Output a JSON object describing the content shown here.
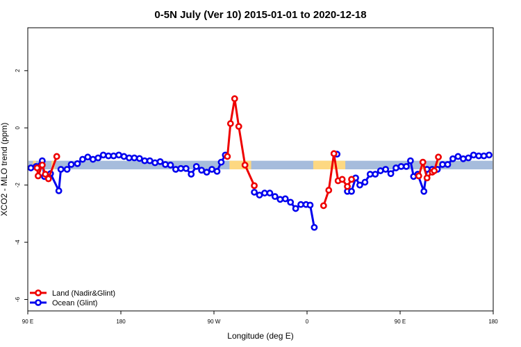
{
  "chart_data": {
    "type": "line",
    "title": "0-5N July (Ver 10)   2015-01-01 to 2020-12-18",
    "xlabel": "Longitude (deg E)",
    "ylabel": "XCO2 - MLO trend (ppm)",
    "x_ticks": [
      {
        "lon": 90,
        "label": "90 E"
      },
      {
        "lon": 180,
        "label": "180"
      },
      {
        "lon": 270,
        "label": "90 W"
      },
      {
        "lon": 360,
        "label": "0"
      },
      {
        "lon": 450,
        "label": "90 E"
      },
      {
        "lon": 540,
        "label": "180"
      }
    ],
    "y_ticks": [
      -6,
      -4,
      -2,
      0,
      2
    ],
    "xlim": [
      90,
      540
    ],
    "ylim": [
      -6.4,
      3.5
    ],
    "legend_position": "bottom-left",
    "grid": false,
    "colors": {
      "land": "#ee0000",
      "ocean": "#0000ee",
      "ocean_band": "#a6bcdc",
      "land_band": "#fdd882"
    },
    "band": {
      "y_range": [
        -1.45,
        -1.15
      ],
      "land_segments": [
        [
          95,
          98
        ],
        [
          113,
          116
        ],
        [
          285,
          306
        ],
        [
          366,
          378
        ],
        [
          368,
          397
        ],
        [
          470,
          475
        ],
        [
          485,
          488
        ]
      ]
    },
    "series": [
      {
        "name": "Land (Nadir&Glint)",
        "key": "land",
        "segments": [
          [
            [
              99,
              -1.4
            ],
            [
              100,
              -1.68
            ],
            [
              104,
              -1.3
            ],
            [
              107,
              -1.62
            ],
            [
              110,
              -1.78
            ],
            [
              118,
              -1.0
            ]
          ],
          [
            [
              283,
              -1.0
            ],
            [
              286,
              0.15
            ],
            [
              290,
              1.02
            ],
            [
              294,
              0.05
            ],
            [
              300,
              -1.3
            ],
            [
              309,
              -2.02
            ]
          ],
          [
            [
              376,
              -2.72
            ],
            [
              381,
              -2.18
            ],
            [
              386,
              -0.9
            ],
            [
              390,
              -1.85
            ],
            [
              394,
              -1.8
            ],
            [
              399,
              -2.05
            ],
            [
              403,
              -1.8
            ]
          ],
          [
            [
              468,
              -1.68
            ],
            [
              472,
              -1.2
            ],
            [
              476,
              -1.75
            ],
            [
              481,
              -1.55
            ],
            [
              483,
              -1.5
            ],
            [
              487,
              -1.02
            ]
          ]
        ]
      },
      {
        "name": "Ocean (Glint)",
        "key": "ocean",
        "segments": [
          [
            [
              93,
              -1.4
            ],
            [
              98,
              -1.35
            ],
            [
              104,
              -1.15
            ],
            [
              106,
              -1.7
            ],
            [
              112,
              -1.6
            ],
            [
              120,
              -2.2
            ],
            [
              122,
              -1.45
            ],
            [
              128,
              -1.45
            ],
            [
              132,
              -1.28
            ],
            [
              138,
              -1.25
            ],
            [
              143,
              -1.1
            ],
            [
              148,
              -1.02
            ],
            [
              153,
              -1.1
            ],
            [
              158,
              -1.05
            ],
            [
              163,
              -0.95
            ],
            [
              168,
              -0.98
            ],
            [
              173,
              -0.98
            ],
            [
              178,
              -0.95
            ],
            [
              183,
              -1.0
            ],
            [
              188,
              -1.05
            ],
            [
              193,
              -1.05
            ],
            [
              198,
              -1.07
            ],
            [
              203,
              -1.15
            ],
            [
              208,
              -1.15
            ],
            [
              213,
              -1.22
            ],
            [
              218,
              -1.18
            ],
            [
              223,
              -1.28
            ],
            [
              228,
              -1.3
            ],
            [
              233,
              -1.45
            ],
            [
              238,
              -1.42
            ],
            [
              243,
              -1.42
            ],
            [
              248,
              -1.62
            ],
            [
              253,
              -1.35
            ],
            [
              258,
              -1.48
            ],
            [
              263,
              -1.55
            ],
            [
              268,
              -1.45
            ],
            [
              273,
              -1.52
            ],
            [
              277,
              -1.2
            ],
            [
              281,
              -0.95
            ]
          ],
          [
            [
              309,
              -2.25
            ],
            [
              314,
              -2.35
            ],
            [
              319,
              -2.28
            ],
            [
              324,
              -2.28
            ],
            [
              329,
              -2.4
            ],
            [
              334,
              -2.5
            ],
            [
              339,
              -2.48
            ],
            [
              344,
              -2.6
            ],
            [
              349,
              -2.82
            ],
            [
              354,
              -2.68
            ],
            [
              359,
              -2.68
            ],
            [
              363,
              -2.7
            ],
            [
              367,
              -3.48
            ]
          ],
          [
            [
              389,
              -0.92
            ]
          ],
          [
            [
              399,
              -2.22
            ],
            [
              403,
              -2.22
            ],
            [
              407,
              -1.75
            ],
            [
              411,
              -2.0
            ],
            [
              416,
              -1.9
            ],
            [
              421,
              -1.62
            ],
            [
              426,
              -1.62
            ],
            [
              431,
              -1.5
            ],
            [
              436,
              -1.45
            ],
            [
              441,
              -1.6
            ],
            [
              446,
              -1.4
            ],
            [
              451,
              -1.35
            ],
            [
              456,
              -1.35
            ],
            [
              460,
              -1.15
            ],
            [
              463,
              -1.7
            ],
            [
              467,
              -1.62
            ],
            [
              473,
              -2.22
            ],
            [
              476,
              -1.45
            ],
            [
              481,
              -1.45
            ],
            [
              486,
              -1.45
            ],
            [
              491,
              -1.28
            ],
            [
              496,
              -1.28
            ],
            [
              501,
              -1.08
            ],
            [
              506,
              -1.0
            ],
            [
              511,
              -1.08
            ],
            [
              516,
              -1.05
            ],
            [
              521,
              -0.95
            ],
            [
              526,
              -0.98
            ],
            [
              531,
              -0.98
            ],
            [
              536,
              -0.95
            ]
          ]
        ]
      }
    ]
  }
}
